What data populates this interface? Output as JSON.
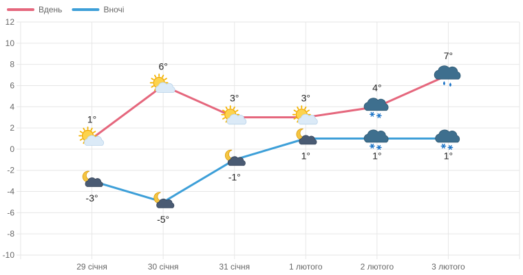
{
  "chart_data": {
    "type": "line",
    "categories": [
      "29 січня",
      "30 січня",
      "31 січня",
      "1 лютого",
      "2 лютого",
      "3 лютого"
    ],
    "ylim": [
      -10,
      12
    ],
    "yticks": [
      12,
      10,
      8,
      6,
      4,
      2,
      0,
      -2,
      -4,
      -6,
      -8,
      -10
    ],
    "grid": true,
    "legend_position": "top-left",
    "series": [
      {
        "name": "Вдень",
        "color": "#e5677d",
        "values": [
          1,
          6,
          3,
          3,
          4,
          7
        ],
        "labels": [
          "1°",
          "6°",
          "3°",
          "3°",
          "4°",
          "7°"
        ],
        "label_position": "above",
        "icons": [
          "sun-cloud-icon",
          "sun-cloud-icon",
          "sun-cloud-icon",
          "sun-cloud-icon",
          "dark-cloud-snow-icon",
          "dark-cloud-rain-icon"
        ]
      },
      {
        "name": "Вночі",
        "color": "#3d9fd8",
        "values": [
          -3,
          -5,
          -1,
          1,
          1,
          1
        ],
        "labels": [
          "-3°",
          "-5°",
          "-1°",
          "1°",
          "1°",
          "1°"
        ],
        "label_position": "below",
        "icons": [
          "moon-cloud-icon",
          "moon-cloud-icon",
          "moon-cloud-icon",
          "moon-cloud-icon",
          "dark-cloud-snow-icon",
          "dark-cloud-snow-icon"
        ]
      }
    ]
  }
}
